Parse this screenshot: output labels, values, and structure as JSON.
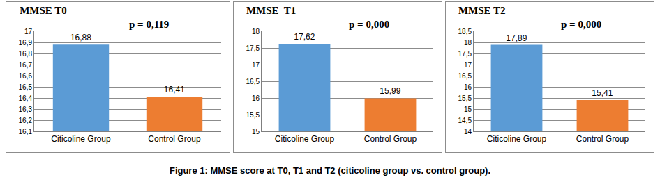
{
  "caption": "Figure 1: MMSE score at T0, T1 and T2 (citicoline group vs. control group).",
  "chart_data": [
    {
      "type": "bar",
      "title": "MMSE T0",
      "categories": [
        "Citicoline Group",
        "Control Group"
      ],
      "values": [
        16.88,
        16.41
      ],
      "value_labels": [
        "16,88",
        "16,41"
      ],
      "colors": [
        "#5b9bd5",
        "#ed7d31"
      ],
      "ylim": [
        16.1,
        17
      ],
      "yticks": [
        {
          "value": 16.1,
          "label": "16,1"
        },
        {
          "value": 16.2,
          "label": "16,2"
        },
        {
          "value": 16.3,
          "label": "16,3"
        },
        {
          "value": 16.4,
          "label": "16,4"
        },
        {
          "value": 16.5,
          "label": "16,5"
        },
        {
          "value": 16.6,
          "label": "16,6"
        },
        {
          "value": 16.7,
          "label": "16,7"
        },
        {
          "value": 16.8,
          "label": "16,8"
        },
        {
          "value": 16.9,
          "label": "16,9"
        },
        17
      ],
      "grid": true,
      "data_labels": true,
      "annotations": [
        "p = 0,119"
      ]
    },
    {
      "type": "bar",
      "title": "MMSE  T1",
      "categories": [
        "Citicoline Group",
        "Control Group"
      ],
      "values": [
        17.62,
        15.99
      ],
      "value_labels": [
        "17,62",
        "15,99"
      ],
      "colors": [
        "#5b9bd5",
        "#ed7d31"
      ],
      "ylim": [
        15,
        18
      ],
      "yticks": [
        15,
        {
          "value": 15.5,
          "label": "15,5"
        },
        16,
        {
          "value": 16.5,
          "label": "16,5"
        },
        17,
        {
          "value": 17.5,
          "label": "17,5"
        },
        18
      ],
      "grid": true,
      "data_labels": true,
      "annotations": [
        "p = 0,000"
      ]
    },
    {
      "type": "bar",
      "title": "MMSE T2",
      "categories": [
        "Citicoline Group",
        "Control Group"
      ],
      "values": [
        17.89,
        15.41
      ],
      "value_labels": [
        "17,89",
        "15,41"
      ],
      "colors": [
        "#5b9bd5",
        "#ed7d31"
      ],
      "ylim": [
        14,
        18.5
      ],
      "yticks": [
        14,
        {
          "value": 14.5,
          "label": "14,5"
        },
        15,
        {
          "value": 15.5,
          "label": "15,5"
        },
        16,
        {
          "value": 16.5,
          "label": "16,5"
        },
        17,
        {
          "value": 17.5,
          "label": "17,5"
        },
        18,
        {
          "value": 18.5,
          "label": "18,5"
        }
      ],
      "grid": true,
      "data_labels": true,
      "annotations": [
        "p = 0,000"
      ]
    }
  ]
}
